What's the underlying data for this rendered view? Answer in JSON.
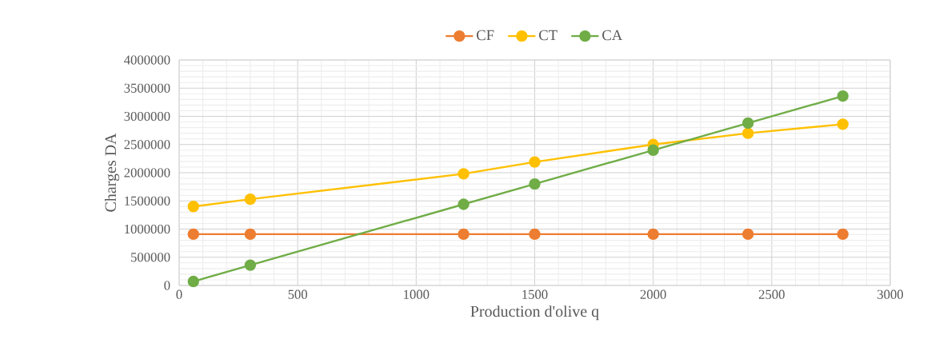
{
  "chart_data": {
    "type": "line",
    "xlabel": "Production d'olive q",
    "ylabel": "Charges DA",
    "x": [
      60,
      300,
      1200,
      1500,
      2000,
      2400,
      2800
    ],
    "series": [
      {
        "name": "CF",
        "color": "#ed7d31",
        "values": [
          910000,
          910000,
          910000,
          910000,
          910000,
          910000,
          910000
        ]
      },
      {
        "name": "CT",
        "color": "#ffc000",
        "values": [
          1400000,
          1530000,
          1980000,
          2190000,
          2500000,
          2700000,
          2860000
        ]
      },
      {
        "name": "CA",
        "color": "#70ad47",
        "values": [
          70000,
          360000,
          1440000,
          1800000,
          2400000,
          2880000,
          3360000
        ]
      }
    ],
    "xlim": [
      0,
      3000
    ],
    "ylim": [
      0,
      4000000
    ],
    "xticks": [
      0,
      500,
      1000,
      1500,
      2000,
      2500,
      3000
    ],
    "yticks": [
      0,
      500000,
      1000000,
      1500000,
      2000000,
      2500000,
      3000000,
      3500000,
      4000000
    ],
    "grid": true,
    "legend": "top",
    "marker": "circle",
    "line_style": "solid"
  }
}
